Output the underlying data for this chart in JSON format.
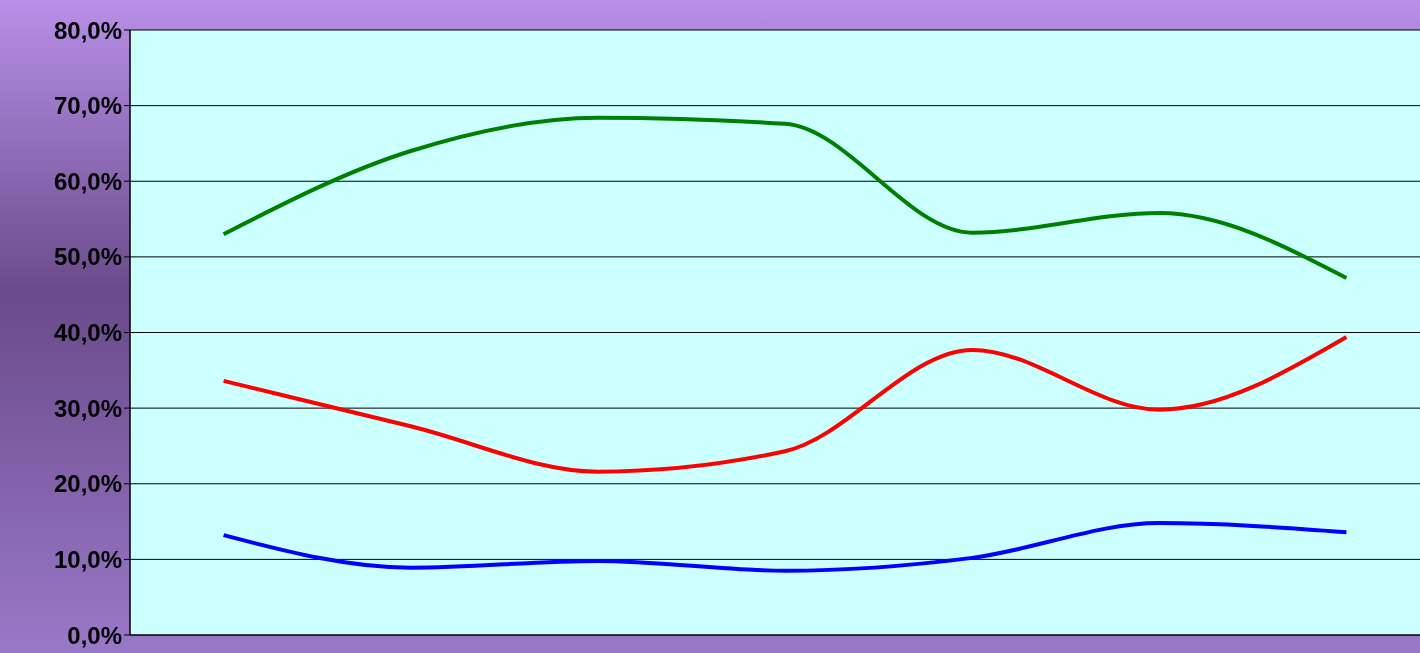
{
  "chart_data": {
    "type": "line",
    "categories": [
      null,
      null,
      null,
      null,
      null,
      null,
      null
    ],
    "series": [
      {
        "color": "#008000",
        "values": [
          53.0,
          64.0,
          68.4,
          67.6,
          53.2,
          55.8,
          47.2
        ]
      },
      {
        "color": "#ff0000",
        "values": [
          33.6,
          27.6,
          21.6,
          24.3,
          37.7,
          29.8,
          39.4
        ]
      },
      {
        "color": "#0000ff",
        "values": [
          13.2,
          8.9,
          9.8,
          8.5,
          10.2,
          14.8,
          13.6
        ]
      }
    ],
    "ylim": [
      0,
      80
    ],
    "yticks": [
      {
        "value": 0,
        "label": "0,0%"
      },
      {
        "value": 10,
        "label": "10,0%"
      },
      {
        "value": 20,
        "label": "20,0%"
      },
      {
        "value": 30,
        "label": "30,0%"
      },
      {
        "value": 40,
        "label": "40,0%"
      },
      {
        "value": 50,
        "label": "50,0%"
      },
      {
        "value": 60,
        "label": "60,0%"
      },
      {
        "value": 70,
        "label": "70,0%"
      },
      {
        "value": 80,
        "label": "80,0%"
      }
    ],
    "grid": true,
    "tick_labels": "y",
    "marker": "none",
    "line_style": "solid"
  }
}
